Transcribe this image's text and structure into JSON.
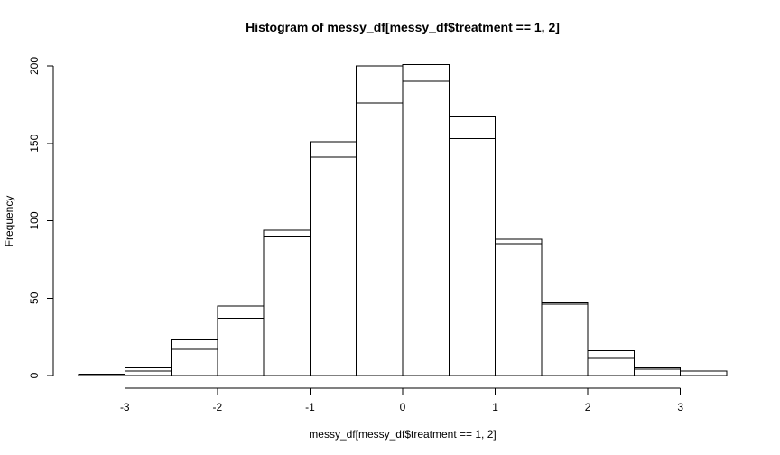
{
  "chart_data": {
    "type": "bar",
    "subtype": "histogram-overlay",
    "title": "Histogram of messy_df[messy_df$treatment == 1, 2]",
    "xlabel": "messy_df[messy_df$treatment == 1, 2]",
    "ylabel": "Frequency",
    "breaks": [
      -3.5,
      -3.0,
      -2.5,
      -2.0,
      -1.5,
      -1.0,
      -0.5,
      0.0,
      0.5,
      1.0,
      1.5,
      2.0,
      2.5,
      3.0,
      3.5
    ],
    "series": [
      {
        "counts": [
          1,
          5,
          23,
          45,
          94,
          151,
          200,
          201,
          167,
          88,
          47,
          16,
          5,
          3
        ]
      },
      {
        "counts": [
          0,
          3,
          17,
          37,
          90,
          141,
          176,
          190,
          153,
          85,
          46,
          11,
          4,
          0
        ]
      }
    ],
    "xticks": [
      -3,
      -2,
      -1,
      0,
      1,
      2,
      3
    ],
    "yticks": [
      0,
      50,
      100,
      150,
      200
    ],
    "xlim": [
      -3.5,
      3.5
    ],
    "ylim": [
      0,
      200
    ],
    "grid": false,
    "legend": "none"
  }
}
